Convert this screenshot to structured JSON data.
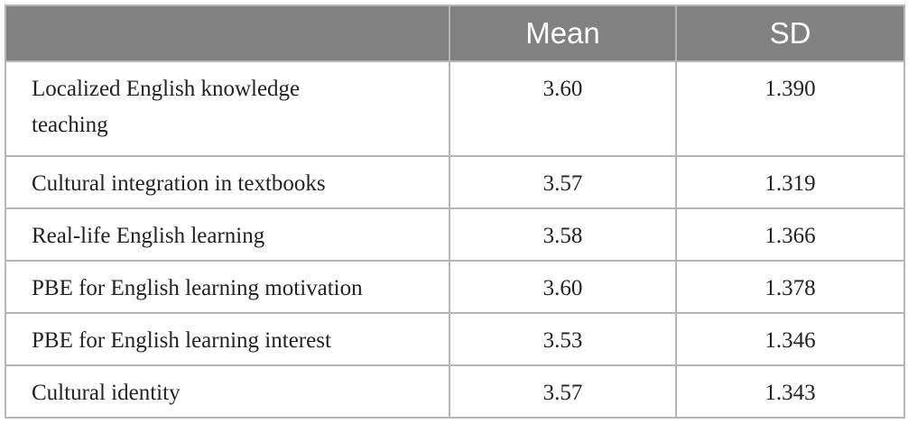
{
  "table": {
    "header": [
      "Mean",
      "SD"
    ],
    "rows": [
      [
        "Localized English knowledge teaching",
        "3.60",
        "1.390"
      ],
      [
        "Cultural integration in textbooks",
        "3.57",
        "1.319"
      ],
      [
        "Real-life English learning",
        "3.58",
        "1.366"
      ],
      [
        "PBE for English learning motivation",
        "3.60",
        "1.378"
      ],
      [
        "PBE for English learning interest",
        "3.53",
        "1.346"
      ],
      [
        "Cultural identity",
        "3.57",
        "1.343"
      ]
    ]
  }
}
